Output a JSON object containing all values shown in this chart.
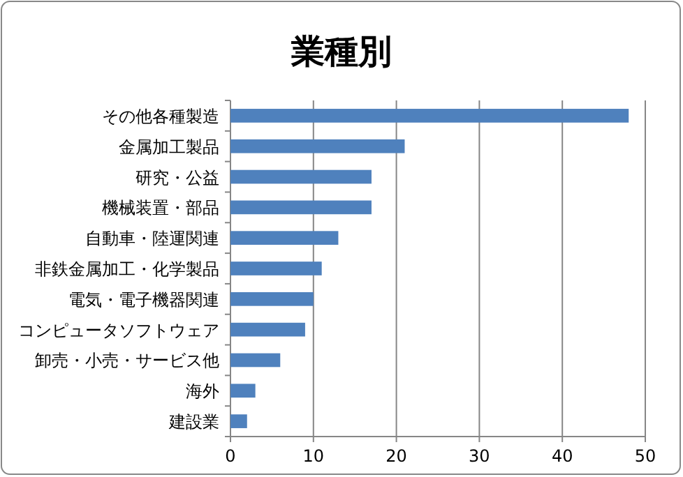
{
  "chart_data": {
    "type": "bar",
    "orientation": "horizontal",
    "title": "業種別",
    "categories": [
      "その他各種製造",
      "金属加工製品",
      "研究・公益",
      "機械装置・部品",
      "自動車・陸運関連",
      "非鉄金属加工・化学製品",
      "電気・電子機器関連",
      "コンピュータソフトウェア",
      "卸売・小売・サービス他",
      "海外",
      "建設業"
    ],
    "values": [
      48,
      21,
      17,
      17,
      13,
      11,
      10,
      9,
      6,
      3,
      2
    ],
    "color": "#4f81bd",
    "xlim": [
      0,
      50
    ],
    "xticks": [
      0,
      10,
      20,
      30,
      40,
      50
    ],
    "grid": "x"
  }
}
